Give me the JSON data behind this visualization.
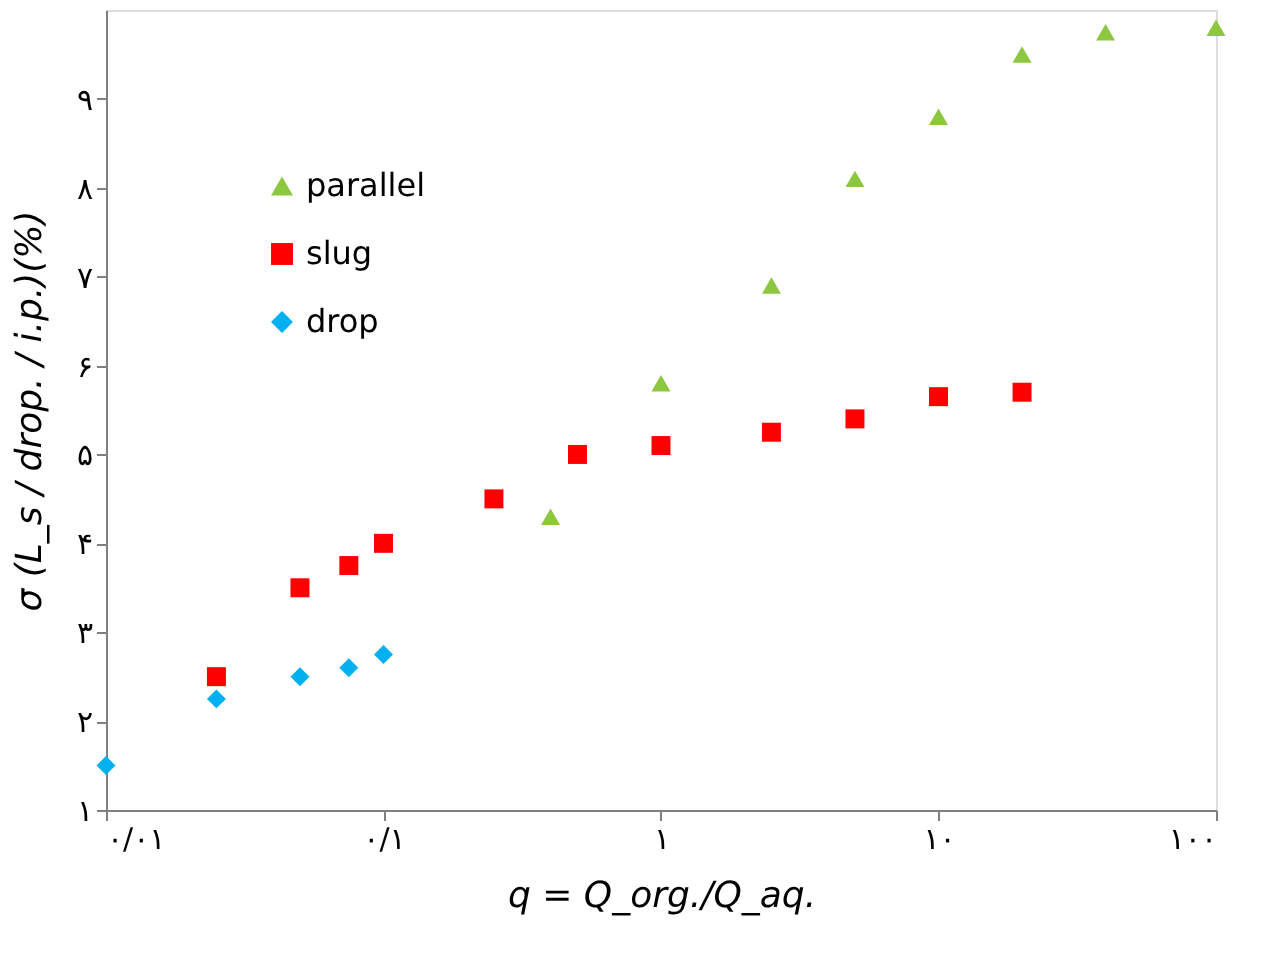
{
  "chart_data": {
    "type": "scatter",
    "xlabel": "q = Q_org./Q_aq.",
    "ylabel": "σ (L_s / drop. / i.p.)(%)",
    "log": "x",
    "xlim": [
      0.01,
      100
    ],
    "xticks": [
      {
        "value": 0.01,
        "label": "۰/۰۱"
      },
      {
        "value": 0.1,
        "label": "۰/۱"
      },
      {
        "value": 1,
        "label": "۱"
      },
      {
        "value": 10,
        "label": "۱۰"
      },
      {
        "value": 100,
        "label": "۱۰۰"
      }
    ],
    "ylim": [
      1,
      10
    ],
    "yticks": [
      {
        "value": 1,
        "label": "۱"
      },
      {
        "value": 2,
        "label": "۲"
      },
      {
        "value": 3,
        "label": "۳"
      },
      {
        "value": 4,
        "label": "۴"
      },
      {
        "value": 5,
        "label": "۵"
      },
      {
        "value": 6,
        "label": "۶"
      },
      {
        "value": 7,
        "label": "۷"
      },
      {
        "value": 8,
        "label": "۸"
      },
      {
        "value": 9,
        "label": "۹"
      }
    ],
    "grid": false,
    "legend": "top left",
    "series": [
      {
        "name": "parallel",
        "color": "#8dc63f",
        "marker": "triangle",
        "x": [
          0.4,
          1,
          2.5,
          5,
          10,
          20,
          40,
          100
        ],
        "values": [
          4.3,
          5.8,
          6.9,
          8.1,
          8.8,
          9.5,
          9.75,
          9.8
        ]
      },
      {
        "name": "slug",
        "color": "#ff0000",
        "marker": "square",
        "x": [
          0.025,
          0.05,
          0.075,
          0.1,
          0.25,
          0.5,
          1,
          2.5,
          5,
          10,
          20
        ],
        "values": [
          2.5,
          3.5,
          3.75,
          4.0,
          4.5,
          5.0,
          5.1,
          5.25,
          5.4,
          5.65,
          5.7
        ]
      },
      {
        "name": "drop",
        "color": "#00b0f0",
        "marker": "diamond",
        "x": [
          0.01,
          0.025,
          0.05,
          0.075,
          0.1
        ],
        "values": [
          1.5,
          2.25,
          2.5,
          2.6,
          2.75
        ]
      }
    ]
  }
}
